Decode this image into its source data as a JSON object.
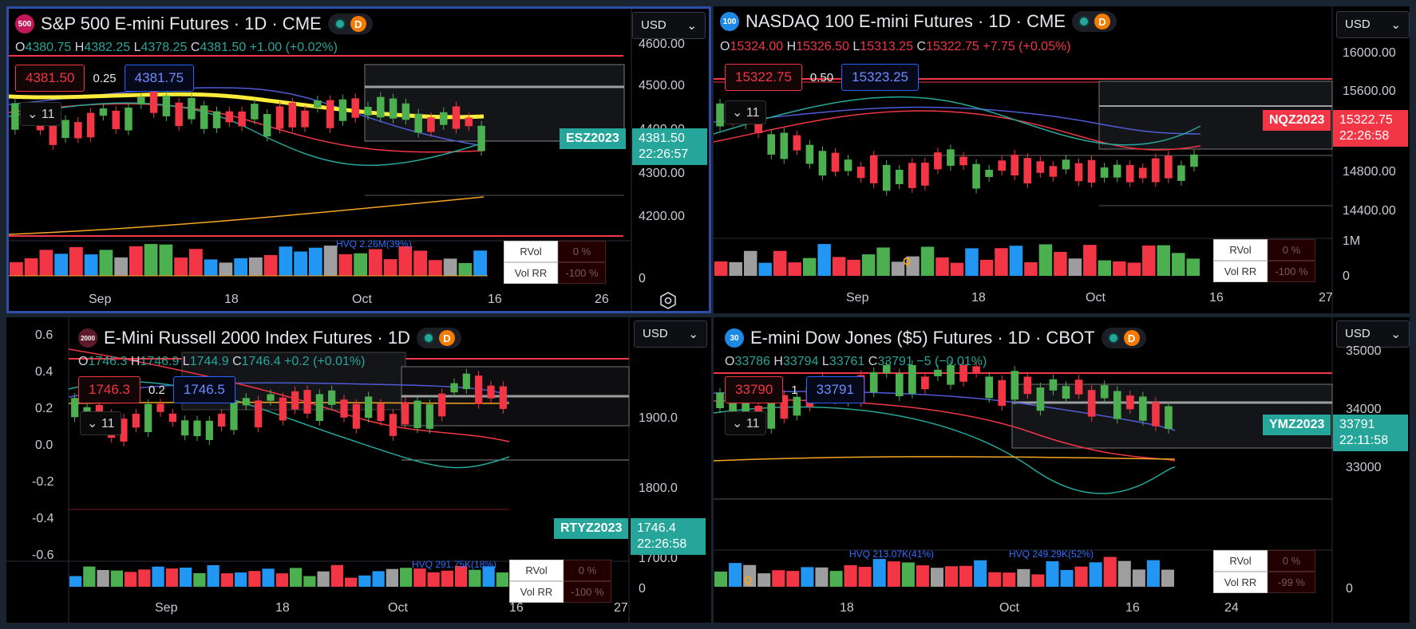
{
  "panels": [
    {
      "badge": "500",
      "badge_color": "#c2185b",
      "title": "S&P 500 E-mini Futures · 1D · CME",
      "pill_letter": "D",
      "ohlc": {
        "o": "4380.75",
        "h": "4382.25",
        "l": "4378.25",
        "c": "4381.50",
        "chg": "+1.00 (+0.02%)",
        "dir": "up"
      },
      "bid": "4381.50",
      "spread": "0.25",
      "ask": "4381.75",
      "collapse": "11",
      "currency": "USD",
      "price_axis": [
        "4600.00",
        "4500.00",
        "4400.00",
        "4300.00",
        "4200.00"
      ],
      "vol_axis": "0",
      "ticker": "ESZ2023",
      "price": "4381.50",
      "countdown": "22:26:57",
      "tag_color": "up",
      "time_axis": [
        "Sep",
        "18",
        "Oct",
        "16",
        "26"
      ],
      "hvq": "HVQ 2.26M(39%)",
      "rvol": {
        "label": "RVol",
        "value": "0 %"
      },
      "volrr": {
        "label": "Vol RR",
        "value": "-100 %"
      }
    },
    {
      "badge": "100",
      "badge_color": "#1e88e5",
      "title": "NASDAQ 100 E-mini Futures · 1D · CME",
      "pill_letter": "D",
      "ohlc": {
        "o": "15324.00",
        "h": "15326.50",
        "l": "15313.25",
        "c": "15322.75",
        "chg": "+7.75 (+0.05%)",
        "dir": "dn"
      },
      "bid": "15322.75",
      "spread": "0.50",
      "ask": "15323.25",
      "collapse": "11",
      "currency": "USD",
      "price_axis": [
        "16000.00",
        "15600.00",
        "14800.00",
        "14400.00"
      ],
      "vol_axis": "1M",
      "vol_axis_zero": "0",
      "ticker": "NQZ2023",
      "price": "15322.75",
      "countdown": "22:26:58",
      "tag_color": "dn",
      "time_axis": [
        "Sep",
        "18",
        "Oct",
        "16",
        "27"
      ],
      "q": "Q",
      "rvol": {
        "label": "RVol",
        "value": "0 %"
      },
      "volrr": {
        "label": "Vol RR",
        "value": "-100 %"
      }
    },
    {
      "badge": "2000",
      "badge_color": "#5d1a2a",
      "title": "E-Mini Russell 2000 Index Futures · 1D",
      "pill_letter": "D",
      "ohlc": {
        "o": "1746.3",
        "h": "1746.9",
        "l": "1744.9",
        "c": "1746.4",
        "chg": "+0.2 (+0.01%)",
        "dir": "up"
      },
      "bid": "1746.3",
      "spread": "0.2",
      "ask": "1746.5",
      "collapse": "11",
      "currency": "USD",
      "left_axis": [
        "0.6",
        "0.4",
        "0.2",
        "0.0",
        "-0.2",
        "-0.4",
        "-0.6"
      ],
      "price_axis": [
        "1900.0",
        "1800.0",
        "1700.0"
      ],
      "vol_axis": "0",
      "ticker": "RTYZ2023",
      "price": "1746.4",
      "countdown": "22:26:58",
      "tag_color": "up",
      "time_axis": [
        "Sep",
        "18",
        "Oct",
        "16",
        "27"
      ],
      "hvq": "HVQ 291.75K(18%)",
      "rvol": {
        "label": "RVol",
        "value": "0 %"
      },
      "volrr": {
        "label": "Vol RR",
        "value": "-100 %"
      }
    },
    {
      "badge": "30",
      "badge_color": "#1e88e5",
      "title": "E-mini Dow Jones ($5) Futures · 1D · CBOT",
      "pill_letter": "D",
      "ohlc": {
        "o": "33786",
        "h": "33794",
        "l": "33761",
        "c": "33791",
        "chg": "−5 (−0.01%)",
        "dir": "up"
      },
      "bid": "33790",
      "spread": "1",
      "ask": "33791",
      "collapse": "11",
      "currency": "USD",
      "price_axis": [
        "35000",
        "34000",
        "33000"
      ],
      "vol_axis": "0",
      "ticker": "YMZ2023",
      "price": "33791",
      "countdown": "22:11:58",
      "tag_color": "up",
      "time_axis": [
        "18",
        "Oct",
        "16",
        "24"
      ],
      "hvq": "HVQ 213.07K(41%)",
      "hvq2": "HVQ 249.29K(52%)",
      "q": "Q",
      "rvol": {
        "label": "RVol",
        "value": "0 %"
      },
      "volrr": {
        "label": "Vol RR",
        "value": "-99 %"
      }
    }
  ]
}
